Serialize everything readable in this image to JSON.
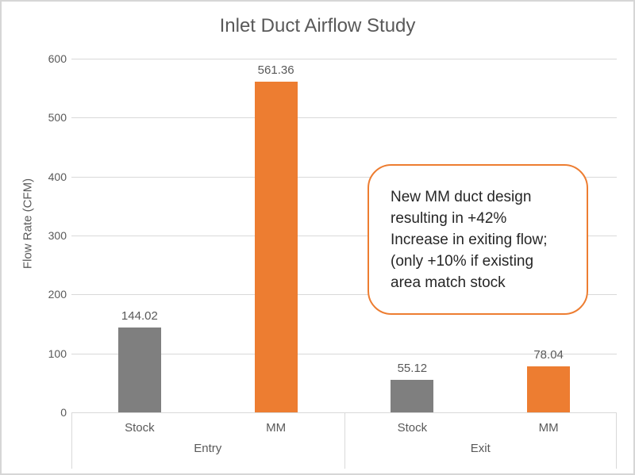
{
  "window": {
    "background": "#FFFFFF",
    "border_color": "#D6D6D6"
  },
  "chart_data": {
    "type": "bar",
    "title": "Inlet Duct Airflow Study",
    "ylabel": "Flow Rate (CFM)",
    "xlabel": "",
    "ylim": [
      0,
      600
    ],
    "ytick_step": 100,
    "yticks": [
      0,
      100,
      200,
      300,
      400,
      500,
      600
    ],
    "grid": true,
    "legend": "none",
    "group_labels": [
      "Entry",
      "Exit"
    ],
    "categories": [
      "Stock",
      "MM",
      "Stock",
      "MM"
    ],
    "values": [
      144.02,
      561.36,
      55.12,
      78.04
    ],
    "data_labels": [
      "144.02",
      "561.36",
      "55.12",
      "78.04"
    ],
    "bar_colors": [
      "#7F7F7F",
      "#ED7D31",
      "#7F7F7F",
      "#ED7D31"
    ],
    "gridline_color": "#D9D9D9",
    "text_color": "#595959"
  },
  "annotation": {
    "text": "New MM duct design\nresulting in +42%\nIncrease in exiting flow;\n(only +10% if existing\narea match stock",
    "border_color": "#ED7D31",
    "text_color": "#262626"
  }
}
